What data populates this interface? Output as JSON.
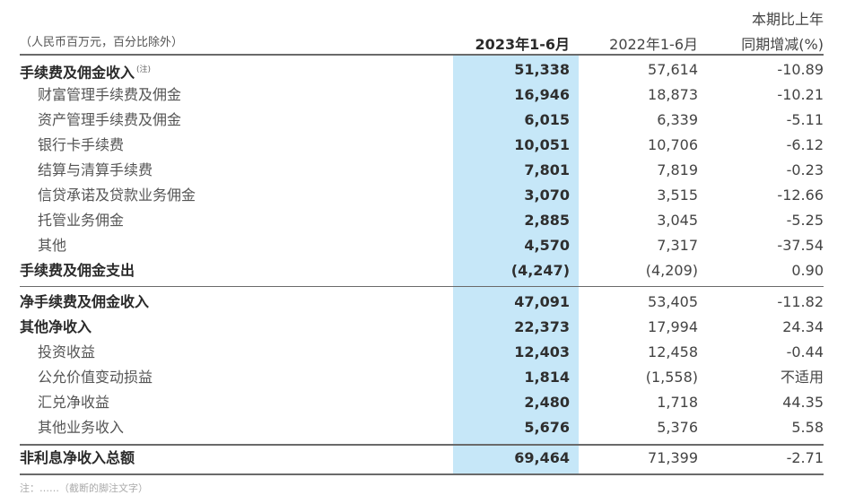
{
  "table": {
    "unit_note": "（人民币百万元，百分比除外）",
    "headers": {
      "col1": "2023年1-6月",
      "col2": "2022年1-6月",
      "col3_line1": "本期比上年",
      "col3_line2": "同期增减(%)"
    },
    "highlight_color": "#c6e7f8",
    "rows": [
      {
        "label": "手续费及佣金收入",
        "note": "(注)",
        "v2023": "51,338",
        "v2022": "57,614",
        "change": "-10.89",
        "style": "bold"
      },
      {
        "label": "财富管理手续费及佣金",
        "v2023": "16,946",
        "v2022": "18,873",
        "change": "-10.21",
        "style": "sub"
      },
      {
        "label": "资产管理手续费及佣金",
        "v2023": "6,015",
        "v2022": "6,339",
        "change": "-5.11",
        "style": "sub"
      },
      {
        "label": "银行卡手续费",
        "v2023": "10,051",
        "v2022": "10,706",
        "change": "-6.12",
        "style": "sub"
      },
      {
        "label": "结算与清算手续费",
        "v2023": "7,801",
        "v2022": "7,819",
        "change": "-0.23",
        "style": "sub"
      },
      {
        "label": "信贷承诺及贷款业务佣金",
        "v2023": "3,070",
        "v2022": "3,515",
        "change": "-12.66",
        "style": "sub"
      },
      {
        "label": "托管业务佣金",
        "v2023": "2,885",
        "v2022": "3,045",
        "change": "-5.25",
        "style": "sub"
      },
      {
        "label": "其他",
        "v2023": "4,570",
        "v2022": "7,317",
        "change": "-37.54",
        "style": "sub"
      },
      {
        "label": "手续费及佣金支出",
        "v2023": "(4,247)",
        "v2022": "(4,209)",
        "change": "0.90",
        "style": "bold"
      },
      {
        "label": "净手续费及佣金收入",
        "v2023": "47,091",
        "v2022": "53,405",
        "change": "-11.82",
        "style": "bold"
      },
      {
        "label": "其他净收入",
        "v2023": "22,373",
        "v2022": "17,994",
        "change": "24.34",
        "style": "bold"
      },
      {
        "label": "投资收益",
        "v2023": "12,403",
        "v2022": "12,458",
        "change": "-0.44",
        "style": "sub"
      },
      {
        "label": "公允价值变动损益",
        "v2023": "1,814",
        "v2022": "(1,558)",
        "change": "不适用",
        "style": "sub"
      },
      {
        "label": "汇兑净收益",
        "v2023": "2,480",
        "v2022": "1,718",
        "change": "44.35",
        "style": "sub"
      },
      {
        "label": "其他业务收入",
        "v2023": "5,676",
        "v2022": "5,376",
        "change": "5.58",
        "style": "sub"
      },
      {
        "label": "非利息净收入总额",
        "v2023": "69,464",
        "v2022": "71,399",
        "change": "-2.71",
        "style": "bold"
      }
    ]
  },
  "footnote": "注：……（截断的脚注文字）"
}
